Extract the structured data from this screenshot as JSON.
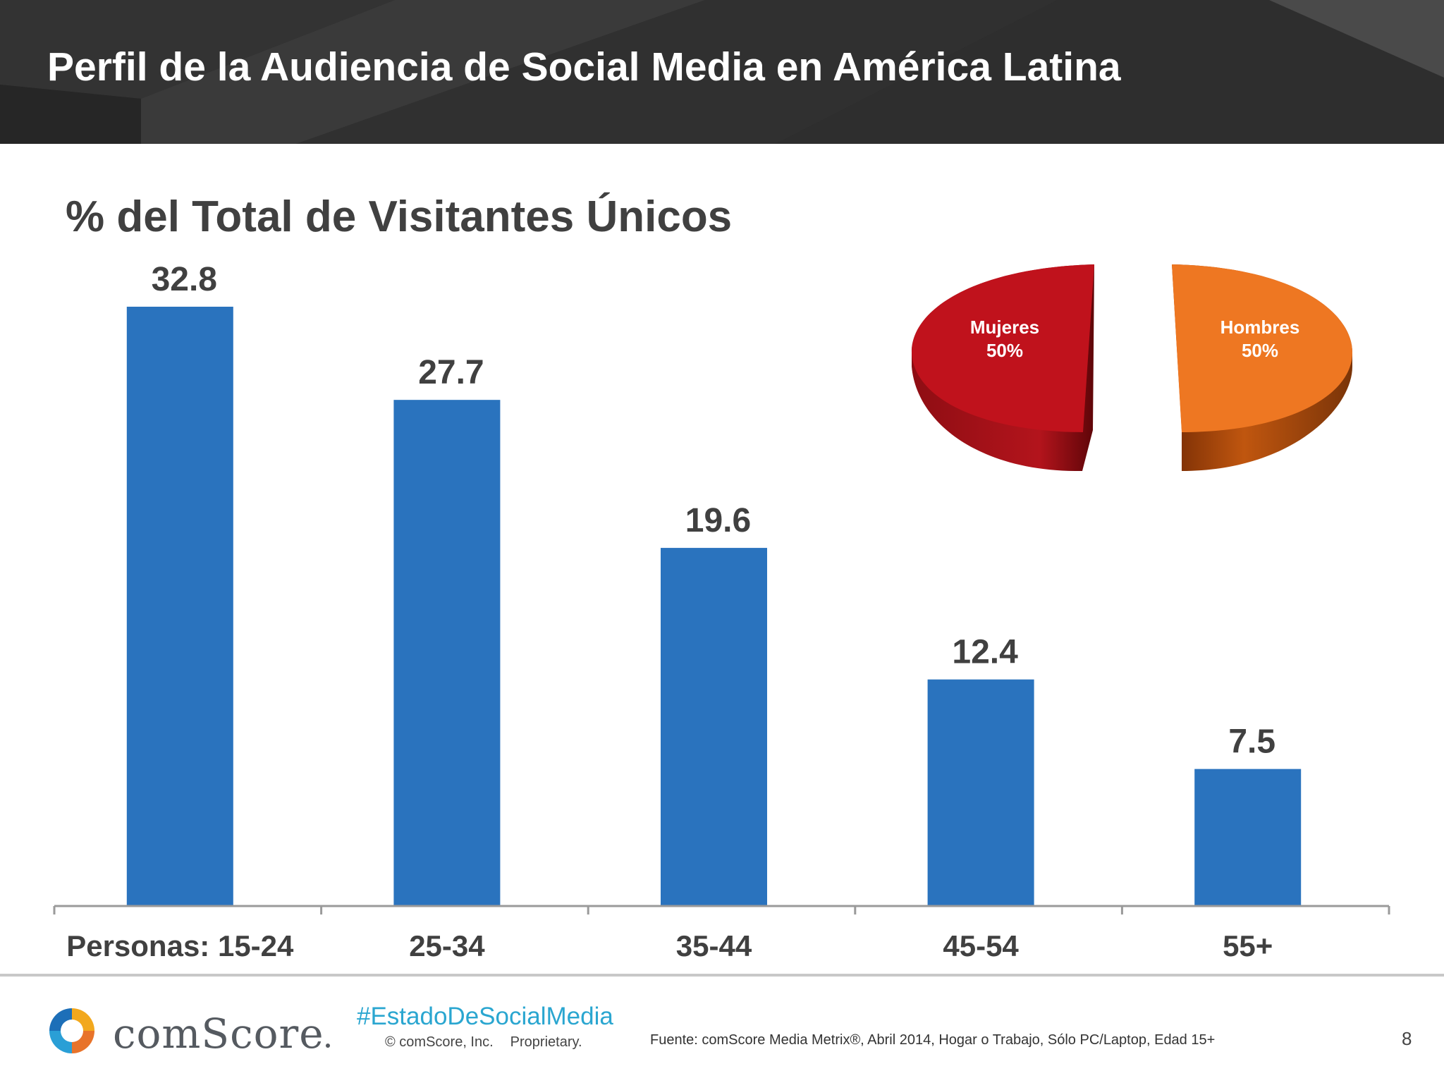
{
  "header": {
    "title": "Perfil de la Audiencia de Social Media en América Latina"
  },
  "chart_data": [
    {
      "type": "bar",
      "title": "% del Total de Visitantes Únicos",
      "categories": [
        "Personas: 15-24",
        "25-34",
        "35-44",
        "45-54",
        "55+"
      ],
      "values": [
        32.8,
        27.7,
        19.6,
        12.4,
        7.5
      ],
      "value_labels": [
        "32.8",
        "27.7",
        "19.6",
        "12.4",
        "7.5"
      ],
      "ylim": [
        0,
        32.8
      ],
      "grid": false,
      "color": "#2a73be"
    },
    {
      "type": "pie",
      "slices": [
        {
          "label": "Mujeres",
          "value": 50,
          "value_label": "50%",
          "color": "#c0121c"
        },
        {
          "label": "Hombres",
          "value": 50,
          "value_label": "50%",
          "color": "#ee7722"
        }
      ]
    }
  ],
  "footer": {
    "brand": "comScore",
    "hashtag": "#EstadoDeSocialMedia",
    "copyright": "© comScore, Inc.",
    "proprietary": "Proprietary.",
    "source": "Fuente: comScore Media Metrix®, Abril 2014, Hogar o Trabajo, Sólo PC/Laptop, Edad 15+",
    "page_number": "8"
  }
}
